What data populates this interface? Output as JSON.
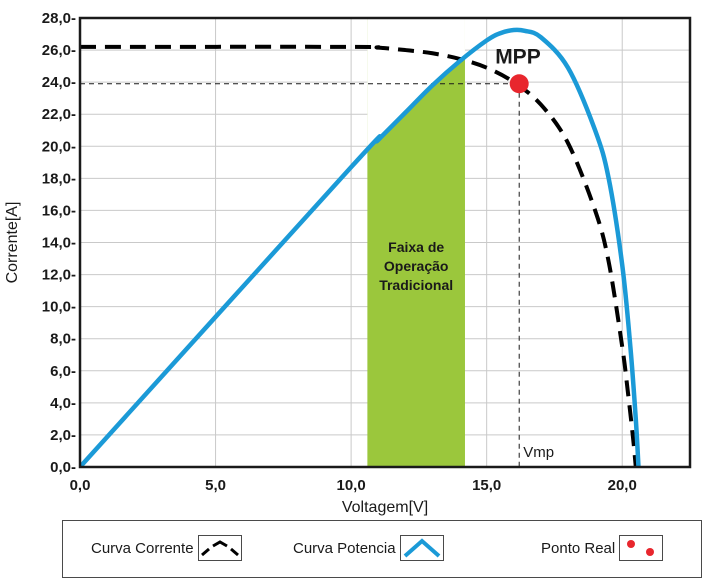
{
  "chart_data": {
    "type": "line",
    "xlabel": "Voltagem[V]",
    "ylabel": "Corrente[A]",
    "xlim": [
      0,
      22.5
    ],
    "ylim": [
      0,
      28
    ],
    "xticks": [
      "0,0",
      "5,0",
      "10,0",
      "15,0",
      "20,0"
    ],
    "xtick_values": [
      0,
      5,
      10,
      15,
      20
    ],
    "yticks": [
      "0,0-",
      "2,0-",
      "4,0-",
      "6,0-",
      "8,0-",
      "10,0-",
      "12,0-",
      "14,0-",
      "16,0-",
      "18,0-",
      "20,0-",
      "22,0-",
      "24,0-",
      "26,0-",
      "28,0-"
    ],
    "ytick_values": [
      0,
      2,
      4,
      6,
      8,
      10,
      12,
      14,
      16,
      18,
      20,
      22,
      24,
      26,
      28
    ],
    "grid": true,
    "series": [
      {
        "name": "Curva Corrente",
        "style": "dashed",
        "color": "#000000",
        "x": [
          0,
          10,
          11,
          12,
          13,
          14,
          15,
          16,
          17,
          18,
          19,
          19.5,
          20,
          20.2,
          20.4,
          20.5
        ],
        "y": [
          26.2,
          26.2,
          26.15,
          26.0,
          25.8,
          25.45,
          24.9,
          24.0,
          22.6,
          20.2,
          16.0,
          12.8,
          7.5,
          4.8,
          1.8,
          0
        ]
      },
      {
        "name": "Curva Potencia",
        "style": "solid",
        "color": "#1b9ad7",
        "x": [
          0,
          10,
          11,
          12,
          13,
          14,
          15,
          15.5,
          16,
          16.4,
          17,
          18,
          19,
          19.5,
          20,
          20.3,
          20.5,
          20.6
        ],
        "y": [
          0,
          18.7,
          20.4,
          22.1,
          23.8,
          25.3,
          26.6,
          27.05,
          27.25,
          27.2,
          26.8,
          24.9,
          21.0,
          18.0,
          12.6,
          7.5,
          3.0,
          0
        ]
      }
    ],
    "band": {
      "label": [
        "Faixa de",
        "Operação",
        "Tradicional"
      ],
      "x_start": 10.6,
      "x_end": 14.2,
      "color": "#9bc73c"
    },
    "mpp": {
      "label": "MPP",
      "x": 16.2,
      "y": 23.9,
      "color": "#e8262d"
    },
    "vmp_label": "Vmp",
    "legend": {
      "placement": "bottom",
      "items": [
        {
          "label": "Curva Corrente",
          "symbol": "dashed-line"
        },
        {
          "label": "Curva Potencia",
          "symbol": "blue-line"
        },
        {
          "label": "Ponto Real",
          "symbol": "red-dots"
        }
      ]
    }
  }
}
